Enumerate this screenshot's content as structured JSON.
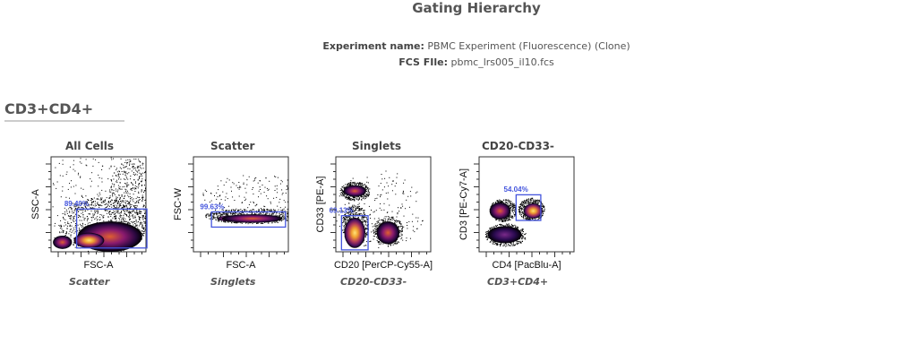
{
  "header": {
    "title": "Gating Hierarchy",
    "experiment_label": "Experiment name:",
    "experiment_value": "PBMC Experiment (Fluorescence) (Clone)",
    "file_label": "FCS FIle:",
    "file_value": "pbmc_lrs005_il10.fcs"
  },
  "section": {
    "title": "CD3+CD4+"
  },
  "colors": {
    "gate": "#4455dd",
    "density_low": "#000000",
    "density_mid": "#8a1a6e",
    "density_high": "#f0a030",
    "density_peak": "#ffe27a"
  },
  "chart_data": [
    {
      "type": "scatter",
      "title": "All Cells",
      "xlabel": "FSC-A",
      "ylabel": "SSC-A",
      "gate_name": "Scatter",
      "gate_percent": "89.40%"
    },
    {
      "type": "scatter",
      "title": "Scatter",
      "xlabel": "FSC-A",
      "ylabel": "FSC-W",
      "gate_name": "Singlets",
      "gate_percent": "99.63%"
    },
    {
      "type": "scatter",
      "title": "Singlets",
      "xlabel": "CD20 [PerCP-Cy55-A]",
      "ylabel": "CD33 [PE-A]",
      "gate_name": "CD20-CD33-",
      "gate_percent": "69.13%"
    },
    {
      "type": "scatter",
      "title": "CD20-CD33-",
      "xlabel": "CD4 [PacBlu-A]",
      "ylabel": "CD3 [PE-Cy7-A]",
      "gate_name": "CD3+CD4+",
      "gate_percent": "54.04%"
    }
  ]
}
